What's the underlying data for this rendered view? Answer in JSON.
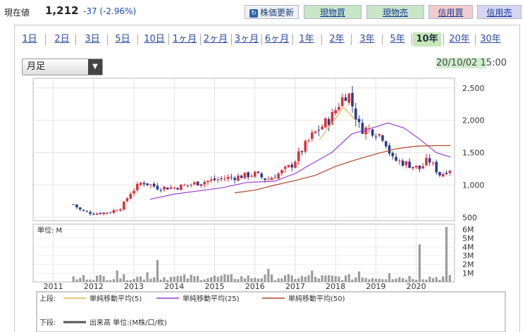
{
  "header": {
    "price_label": "現在値",
    "price": "1,212",
    "change": "-37 (-2.96%)",
    "update_button": "株価更新",
    "actions": [
      "現物買",
      "現物売",
      "信用買",
      "信用売"
    ]
  },
  "period_tabs": [
    "1日",
    "2日",
    "3日",
    "5日",
    "10日",
    "1ヶ月",
    "2ヶ月",
    "3ヶ月",
    "6ヶ月",
    "1年",
    "2年",
    "3年",
    "5年",
    "10年",
    "20年",
    "30年"
  ],
  "active_tab": "10年",
  "interval_select": "月足",
  "timestamp_date": "20/10/02 1",
  "timestamp_time": "5:00",
  "volume_unit_label": "単位: M",
  "colors": {
    "up": "#e0303c",
    "down": "#2a3d8c",
    "ma5": "#d9b84a",
    "ma25": "#9b3fd4",
    "ma50": "#b2452c",
    "volume": "#9c9c9c"
  },
  "chart_data": [
    {
      "type": "candlestick",
      "x_tick_labels": [
        "2011",
        "2012",
        "2013",
        "2014",
        "2015",
        "2016",
        "2017",
        "2018",
        "2019",
        "2020"
      ],
      "x_range": [
        2010.5,
        2020.95
      ],
      "y_ticks": [
        "2,500",
        "2,000",
        "1,500",
        "1,000",
        "500"
      ],
      "ylim": [
        450,
        2650
      ],
      "grid": true,
      "approx_close_path": [
        [
          2011.5,
          700
        ],
        [
          2011.7,
          600
        ],
        [
          2012.0,
          560
        ],
        [
          2012.4,
          580
        ],
        [
          2012.7,
          660
        ],
        [
          2012.9,
          870
        ],
        [
          2013.2,
          1050
        ],
        [
          2013.6,
          960
        ],
        [
          2014.0,
          960
        ],
        [
          2014.4,
          1010
        ],
        [
          2014.8,
          1060
        ],
        [
          2015.2,
          1100
        ],
        [
          2015.6,
          1130
        ],
        [
          2016.0,
          1170
        ],
        [
          2016.3,
          1080
        ],
        [
          2016.6,
          1180
        ],
        [
          2016.9,
          1300
        ],
        [
          2017.1,
          1480
        ],
        [
          2017.4,
          1750
        ],
        [
          2017.6,
          1870
        ],
        [
          2017.9,
          2050
        ],
        [
          2018.1,
          2280
        ],
        [
          2018.3,
          2450
        ],
        [
          2018.6,
          1880
        ],
        [
          2018.9,
          1850
        ],
        [
          2019.2,
          1740
        ],
        [
          2019.4,
          1400
        ],
        [
          2019.8,
          1320
        ],
        [
          2020.1,
          1250
        ],
        [
          2020.3,
          1400
        ],
        [
          2020.6,
          1150
        ],
        [
          2020.8,
          1249
        ]
      ],
      "series": [
        {
          "name": "単純移動平均(5)",
          "approx_points": [
            [
              2017.6,
              1700
            ],
            [
              2017.9,
              1950
            ],
            [
              2018.2,
              2200
            ],
            [
              2018.5,
              2000
            ]
          ]
        },
        {
          "name": "単純移動平均(25)",
          "approx_points": [
            [
              2013.4,
              780
            ],
            [
              2014.0,
              860
            ],
            [
              2014.6,
              910
            ],
            [
              2015.2,
              960
            ],
            [
              2015.8,
              1040
            ],
            [
              2016.5,
              1060
            ],
            [
              2017.0,
              1180
            ],
            [
              2017.5,
              1360
            ],
            [
              2017.9,
              1500
            ],
            [
              2018.4,
              1790
            ],
            [
              2018.9,
              1880
            ],
            [
              2019.3,
              1960
            ],
            [
              2019.7,
              1880
            ],
            [
              2020.1,
              1700
            ],
            [
              2020.5,
              1500
            ],
            [
              2020.85,
              1430
            ]
          ]
        },
        {
          "name": "単純移動平均(50)",
          "approx_points": [
            [
              2015.5,
              880
            ],
            [
              2016.0,
              920
            ],
            [
              2016.5,
              1000
            ],
            [
              2017.0,
              1070
            ],
            [
              2017.5,
              1150
            ],
            [
              2018.0,
              1290
            ],
            [
              2018.5,
              1390
            ],
            [
              2019.0,
              1480
            ],
            [
              2019.5,
              1560
            ],
            [
              2020.0,
              1600
            ],
            [
              2020.5,
              1610
            ],
            [
              2020.85,
              1610
            ]
          ]
        }
      ]
    },
    {
      "type": "bar",
      "title": "出来高",
      "y_ticks": [
        "6M",
        "5M",
        "4M",
        "3M",
        "2M",
        "1M"
      ],
      "ylim": [
        0,
        6.6
      ],
      "notable_volumes": [
        {
          "x": 2011.55,
          "value": 0.3
        },
        {
          "x": 2012.55,
          "value": 1.3
        },
        {
          "x": 2013.3,
          "value": 1.1
        },
        {
          "x": 2013.55,
          "value": 2.5
        },
        {
          "x": 2014.0,
          "value": 0.6
        },
        {
          "x": 2015.45,
          "value": 0.9
        },
        {
          "x": 2016.3,
          "value": 1.5
        },
        {
          "x": 2017.45,
          "value": 1.3
        },
        {
          "x": 2018.55,
          "value": 1.2
        },
        {
          "x": 2019.3,
          "value": 1.0
        },
        {
          "x": 2020.1,
          "value": 4.3
        },
        {
          "x": 2020.75,
          "value": 6.3
        }
      ]
    }
  ],
  "legend": {
    "upper_label": "上段:",
    "lower_label": "下段:",
    "volume_label": "出来高 単位:(M株/口/枚)"
  }
}
